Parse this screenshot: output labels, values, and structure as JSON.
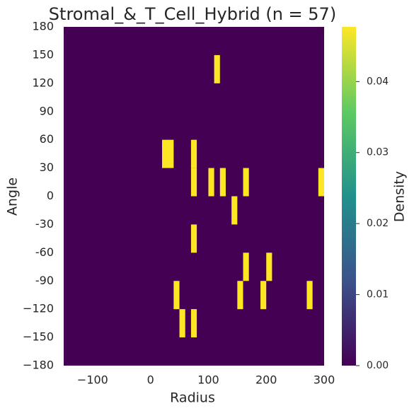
{
  "chart_data": {
    "type": "heatmap",
    "title": "Stromal_&_T_Cell_Hybrid (n = 57)",
    "x_label": "Radius",
    "y_label": "Angle",
    "colorbar_label": "Density",
    "colormap": "viridis",
    "xlim": [
      -150,
      300
    ],
    "ylim": [
      -180,
      180
    ],
    "clim": [
      0,
      0.0477
    ],
    "xticks": [
      {
        "value": -100,
        "label": "−100"
      },
      0,
      100,
      200,
      300
    ],
    "yticks": [
      180,
      150,
      120,
      90,
      60,
      30,
      0,
      {
        "value": -30,
        "label": "-30"
      },
      {
        "value": -60,
        "label": "-60"
      },
      {
        "value": -90,
        "label": "-90"
      },
      {
        "value": -120,
        "label": "−120"
      },
      {
        "value": -150,
        "label": "−150"
      },
      {
        "value": -180,
        "label": "−180"
      }
    ],
    "cticks": [
      {
        "value": 0,
        "label": "0.00"
      },
      {
        "value": 0.01,
        "label": "0.01"
      },
      {
        "value": 0.02,
        "label": "0.02"
      },
      {
        "value": 0.03,
        "label": "0.03"
      },
      {
        "value": 0.04,
        "label": "0.04"
      }
    ],
    "cells": [
      {
        "x": [
          110,
          120
        ],
        "y": [
          120,
          150
        ],
        "value": 0.0477
      },
      {
        "x": [
          20,
          40
        ],
        "y": [
          30,
          60
        ],
        "value": 0.0477
      },
      {
        "x": [
          70,
          80
        ],
        "y": [
          30,
          60
        ],
        "value": 0.0477
      },
      {
        "x": [
          70,
          80
        ],
        "y": [
          0,
          30
        ],
        "value": 0.0477
      },
      {
        "x": [
          100,
          110
        ],
        "y": [
          0,
          30
        ],
        "value": 0.0477
      },
      {
        "x": [
          120,
          130
        ],
        "y": [
          0,
          30
        ],
        "value": 0.0477
      },
      {
        "x": [
          160,
          170
        ],
        "y": [
          0,
          30
        ],
        "value": 0.0477
      },
      {
        "x": [
          290,
          300
        ],
        "y": [
          0,
          30
        ],
        "value": 0.0477
      },
      {
        "x": [
          140,
          150
        ],
        "y": [
          -30,
          0
        ],
        "value": 0.0477
      },
      {
        "x": [
          70,
          80
        ],
        "y": [
          -60,
          -30
        ],
        "value": 0.0477
      },
      {
        "x": [
          160,
          170
        ],
        "y": [
          -90,
          -60
        ],
        "value": 0.0477
      },
      {
        "x": [
          200,
          210
        ],
        "y": [
          -90,
          -60
        ],
        "value": 0.0477
      },
      {
        "x": [
          40,
          50
        ],
        "y": [
          -120,
          -90
        ],
        "value": 0.0477
      },
      {
        "x": [
          150,
          160
        ],
        "y": [
          -120,
          -90
        ],
        "value": 0.0477
      },
      {
        "x": [
          190,
          200
        ],
        "y": [
          -120,
          -90
        ],
        "value": 0.0477
      },
      {
        "x": [
          270,
          280
        ],
        "y": [
          -120,
          -90
        ],
        "value": 0.0477
      },
      {
        "x": [
          50,
          60
        ],
        "y": [
          -150,
          -120
        ],
        "value": 0.0477
      },
      {
        "x": [
          70,
          80
        ],
        "y": [
          -150,
          -120
        ],
        "value": 0.0477
      }
    ]
  }
}
